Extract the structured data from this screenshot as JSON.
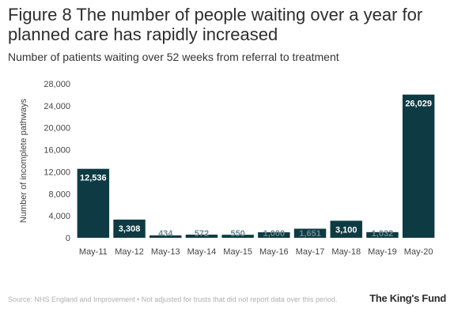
{
  "header": {
    "title": "Figure 8 The number of people waiting over a year for planned care has rapidly increased",
    "subtitle": "Number of patients waiting over 52 weeks from referral to treatment"
  },
  "footer": {
    "source": "Source: NHS England and Improvement • Not adjusted for trusts that did not report data over this period.",
    "logo": "The King's Fund"
  },
  "colors": {
    "bar": "#0e3b43",
    "label_light": "#ffffff",
    "label_faint": "#6b8a90",
    "axis_text": "#444444"
  },
  "chart_data": {
    "type": "bar",
    "title": "",
    "xlabel": "",
    "ylabel": "Number of incomplete pathways",
    "categories": [
      "May-11",
      "May-12",
      "May-13",
      "May-14",
      "May-15",
      "May-16",
      "May-17",
      "May-18",
      "May-19",
      "May-20"
    ],
    "values": [
      12536,
      3308,
      434,
      572,
      550,
      1000,
      1651,
      3100,
      1032,
      26029
    ],
    "data_labels": [
      "12,536",
      "3,308",
      "434",
      "572",
      "550",
      "1,000",
      "1,651",
      "3,100",
      "1,032",
      "26,029"
    ],
    "ylim": [
      0,
      28000
    ],
    "yticks": [
      0,
      4000,
      8000,
      12000,
      16000,
      20000,
      24000,
      28000
    ],
    "ytick_labels": [
      "0",
      "4,000",
      "8,000",
      "12,000",
      "16,000",
      "20,000",
      "24,000",
      "28,000"
    ],
    "grid": false,
    "legend": "none"
  }
}
